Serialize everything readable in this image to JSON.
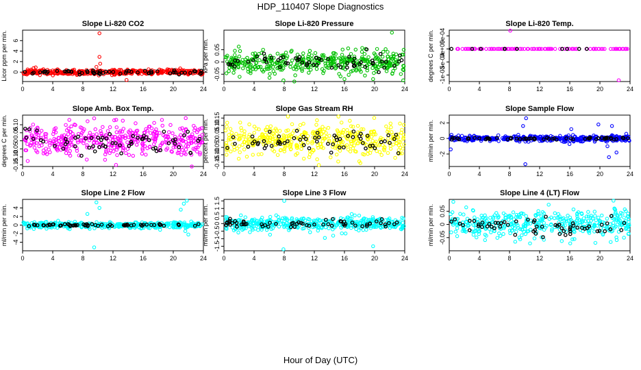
{
  "title": "HDP_110407  Slope Diagnostics",
  "xlabel": "Hour of Day (UTC)",
  "colors": {
    "red": "#ff0000",
    "green": "#00c000",
    "magenta": "#ff00ff",
    "yellow": "#ffff00",
    "blue": "#0000ff",
    "cyan": "#00ffff",
    "black": "#000000"
  },
  "chart_data": [
    {
      "type": "scatter",
      "title": "Slope Li-820 CO2",
      "ylabel": "Licor ppm per min.",
      "color": "#ff0000",
      "xlim": [
        0,
        24
      ],
      "xticks": [
        0,
        4,
        8,
        12,
        16,
        20,
        24
      ],
      "ylim": [
        -1.8,
        8
      ],
      "yticks": [
        0,
        2,
        4,
        6
      ],
      "spread": 0.25,
      "black_spread": 0.2,
      "noise_seed": 11,
      "n_points": 420,
      "n_black": 60,
      "outliers": [
        [
          10.2,
          7.4
        ],
        [
          10.2,
          2.9
        ],
        [
          10.3,
          1.6
        ],
        [
          13.8,
          -1.5
        ],
        [
          9.8,
          1.0
        ]
      ]
    },
    {
      "type": "scatter",
      "title": "Slope Li-820 Pressure",
      "ylabel": "kPa per min.",
      "color": "#00c000",
      "xlim": [
        0,
        24
      ],
      "xticks": [
        0,
        4,
        8,
        12,
        16,
        20,
        24
      ],
      "ylim": [
        -0.08,
        0.13
      ],
      "yticks": [
        -0.05,
        0.0,
        0.05
      ],
      "spread": 0.022,
      "black_spread": 0.015,
      "noise_seed": 23,
      "n_points": 420,
      "n_black": 60,
      "outliers": [
        [
          22.3,
          0.12
        ],
        [
          7.9,
          -0.075
        ],
        [
          16.0,
          -0.07
        ],
        [
          19.8,
          -0.07
        ],
        [
          23.8,
          -0.075
        ],
        [
          5.2,
          0.05
        ]
      ]
    },
    {
      "type": "scatter",
      "title": "Slope Li-820 Temp.",
      "ylabel": "degrees C per min.",
      "color": "#ff00ff",
      "xlim": [
        0,
        24
      ],
      "xticks": [
        0,
        4,
        8,
        12,
        16,
        20,
        24
      ],
      "ylim": [
        -0.00125,
        0.00072
      ],
      "yticks": [
        -0.001,
        -0.0005,
        0,
        0.0005
      ],
      "ytick_labels": [
        "-1e-03",
        "-5e-04",
        "0e+00",
        "5e-04"
      ],
      "spread": 0.0,
      "black_spread": 0.0,
      "noise_seed": 31,
      "n_points": 120,
      "n_black": 10,
      "outliers": [
        [
          8.1,
          0.0007
        ],
        [
          22.5,
          -0.0012
        ]
      ]
    },
    {
      "type": "scatter",
      "title": "Slope Amb. Box Temp.",
      "ylabel": "degrees C per min.",
      "color": "#ff00ff",
      "xlim": [
        0,
        24
      ],
      "xticks": [
        0,
        4,
        8,
        12,
        16,
        20,
        24
      ],
      "ylim": [
        -0.16,
        0.16
      ],
      "yticks": [
        -0.15,
        -0.1,
        -0.05,
        0.0,
        0.05,
        0.1
      ],
      "spread": 0.05,
      "black_spread": 0.04,
      "noise_seed": 41,
      "n_points": 420,
      "n_black": 60,
      "outliers": [
        [
          12.4,
          -0.15
        ],
        [
          6.2,
          0.13
        ],
        [
          9.5,
          0.14
        ],
        [
          18.5,
          0.13
        ]
      ]
    },
    {
      "type": "scatter",
      "title": "Slope Gas Stream RH",
      "ylabel": "percent per min.",
      "color": "#ffff00",
      "xlim": [
        0,
        24
      ],
      "xticks": [
        0,
        4,
        8,
        12,
        16,
        20,
        24
      ],
      "ylim": [
        -0.18,
        0.17
      ],
      "yticks": [
        -0.15,
        -0.1,
        -0.05,
        0.0,
        0.05,
        0.1,
        0.15
      ],
      "spread": 0.055,
      "black_spread": 0.035,
      "noise_seed": 53,
      "n_points": 420,
      "n_black": 60,
      "outliers": [
        [
          8.5,
          0.16
        ],
        [
          12.6,
          -0.17
        ],
        [
          15.2,
          0.16
        ]
      ]
    },
    {
      "type": "scatter",
      "title": "Slope Sample Flow",
      "ylabel": "ml/min per min.",
      "color": "#0000ff",
      "xlim": [
        0,
        24
      ],
      "xticks": [
        0,
        4,
        8,
        12,
        16,
        20,
        24
      ],
      "ylim": [
        -3.6,
        3.0
      ],
      "yticks": [
        -2,
        0,
        2
      ],
      "spread": 0.18,
      "black_spread": 0.08,
      "noise_seed": 61,
      "n_points": 420,
      "n_black": 60,
      "outliers": [
        [
          10.2,
          2.6
        ],
        [
          10.1,
          -3.3
        ],
        [
          19.8,
          1.8
        ],
        [
          21.2,
          -2.4
        ],
        [
          21.6,
          1.6
        ],
        [
          22.2,
          -1.8
        ],
        [
          16.2,
          1.2
        ],
        [
          9.8,
          1.6
        ],
        [
          0.2,
          -1.4
        ],
        [
          21.0,
          -1.0
        ],
        [
          23.5,
          0.6
        ]
      ]
    },
    {
      "type": "scatter",
      "title": "Slope Line 2 Flow",
      "ylabel": "ml/min per min.",
      "color": "#00ffff",
      "xlim": [
        0,
        24
      ],
      "xticks": [
        0,
        4,
        8,
        12,
        16,
        20,
        24
      ],
      "ylim": [
        -6,
        6
      ],
      "yticks": [
        -4,
        -2,
        0,
        2,
        4
      ],
      "spread": 0.35,
      "black_spread": 0.1,
      "noise_seed": 71,
      "n_points": 420,
      "n_black": 60,
      "outliers": [
        [
          9.8,
          5.3
        ],
        [
          10.2,
          4.0
        ],
        [
          9.5,
          -5.2
        ],
        [
          21.4,
          5.0
        ],
        [
          21.8,
          5.7
        ],
        [
          21.0,
          3.6
        ],
        [
          22.0,
          -2.2
        ],
        [
          8.6,
          2.6
        ],
        [
          21.6,
          -1.4
        ]
      ]
    },
    {
      "type": "scatter",
      "title": "Slope Line 3 Flow",
      "ylabel": "ml/min per min.",
      "color": "#00ffff",
      "xlim": [
        0,
        24
      ],
      "xticks": [
        0,
        4,
        8,
        12,
        16,
        20,
        24
      ],
      "ylim": [
        -1.8,
        1.6
      ],
      "yticks": [
        -1.5,
        -1.0,
        -0.5,
        0.0,
        0.5,
        1.0,
        1.5
      ],
      "spread": 0.22,
      "black_spread": 0.15,
      "noise_seed": 83,
      "n_points": 420,
      "n_black": 60,
      "outliers": [
        [
          8.0,
          1.5
        ],
        [
          7.9,
          -1.7
        ],
        [
          19.8,
          -1.5
        ],
        [
          13.4,
          -0.95
        ],
        [
          14.5,
          -0.8
        ]
      ]
    },
    {
      "type": "scatter",
      "title": "Slope Line 4 (LT) Flow",
      "ylabel": "ml/min per min.",
      "color": "#00ffff",
      "xlim": [
        0,
        24
      ],
      "xticks": [
        0,
        4,
        8,
        12,
        16,
        20,
        24
      ],
      "ylim": [
        -0.1,
        0.095
      ],
      "yticks": [
        -0.05,
        0.0,
        0.05
      ],
      "spread": 0.028,
      "black_spread": 0.02,
      "noise_seed": 97,
      "n_points": 420,
      "n_black": 60,
      "outliers": [
        [
          21.8,
          0.09
        ],
        [
          13.2,
          0.075
        ],
        [
          19.4,
          -0.07
        ]
      ]
    }
  ]
}
